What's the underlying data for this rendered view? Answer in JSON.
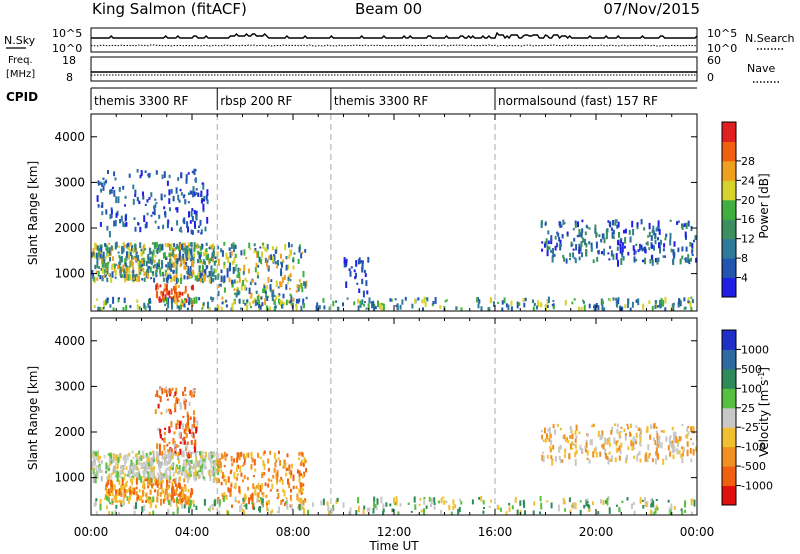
{
  "header": {
    "station": "King Salmon (fitACF)",
    "beam": "Beam 00",
    "date": "07/Nov/2015"
  },
  "noise_panel": {
    "left_label": "N.Sky",
    "right_label": "N.Search",
    "left_ticks": [
      "10^5",
      "10^0"
    ],
    "right_ticks": [
      "10^5",
      "10^0"
    ]
  },
  "freq_panel": {
    "left_label_1": "Freq.",
    "left_label_2": "[MHz]",
    "right_label": "Nave",
    "left_ticks": [
      "18",
      "8"
    ],
    "right_ticks": [
      "60",
      "0"
    ]
  },
  "cpid": {
    "label": "CPID",
    "modes": [
      {
        "name": "themis 3300 RF",
        "start_hour": 0.0
      },
      {
        "name": "rbsp 200 RF",
        "start_hour": 5.0
      },
      {
        "name": "themis 3300 RF",
        "start_hour": 9.5
      },
      {
        "name": "normalsound (fast) 157 RF",
        "start_hour": 16.0
      }
    ]
  },
  "chart_data": [
    {
      "type": "heatmap",
      "title": "",
      "xlabel": "",
      "ylabel": "Slant Range [km]",
      "xlim": [
        0,
        24
      ],
      "ylim": [
        180,
        4500
      ],
      "yticks": [
        1000,
        2000,
        3000,
        4000
      ],
      "grid": false,
      "colorbar": {
        "label": "Power [dB]",
        "range": [
          0,
          32
        ],
        "ticks": [
          "4",
          "8",
          "12",
          "16",
          "20",
          "24",
          "28"
        ],
        "colors": [
          "#1f1fe6",
          "#2255b0",
          "#2f7a9a",
          "#3c8f60",
          "#3fb03f",
          "#d8d22e",
          "#f0a020",
          "#f06010",
          "#e02020"
        ]
      },
      "features": [
        {
          "hours": [
            0.0,
            5.0
          ],
          "range_km": [
            900,
            1700
          ],
          "value": "8-20 dB"
        },
        {
          "hours": [
            0.2,
            4.6
          ],
          "range_km": [
            1900,
            3400
          ],
          "value": "4-8 dB"
        },
        {
          "hours": [
            2.5,
            4.0
          ],
          "range_km": [
            400,
            800
          ],
          "value": "20-28 dB"
        },
        {
          "hours": [
            5.0,
            8.5
          ],
          "range_km": [
            400,
            1700
          ],
          "value": "8-24 dB"
        },
        {
          "hours": [
            10.0,
            11.0
          ],
          "range_km": [
            600,
            1400
          ],
          "value": "4-8 dB"
        },
        {
          "hours": [
            17.8,
            24.0
          ],
          "range_km": [
            1300,
            2200
          ],
          "value": "4-12 dB"
        },
        {
          "hours": [
            0.0,
            24.0
          ],
          "range_km": [
            250,
            500
          ],
          "value": "4-16 dB"
        }
      ]
    },
    {
      "type": "heatmap",
      "title": "",
      "xlabel": "Time UT",
      "ylabel": "Slant Range [km]",
      "xlim": [
        0,
        24
      ],
      "ylim": [
        180,
        4500
      ],
      "xticks": [
        "00:00",
        "04:00",
        "08:00",
        "12:00",
        "16:00",
        "20:00",
        "00:00"
      ],
      "yticks": [
        1000,
        2000,
        3000,
        4000
      ],
      "grid": false,
      "colorbar": {
        "label": "Velocity [m s^-1]",
        "ticks": [
          "1000",
          "500",
          "100",
          "25",
          "-25",
          "-100",
          "-500",
          "-1000"
        ],
        "colors": [
          "#1f2fc8",
          "#2e6aa0",
          "#2e8a5a",
          "#56c040",
          "#c8c8c8",
          "#f0c030",
          "#f09020",
          "#f06010",
          "#e01010"
        ]
      },
      "features": [
        {
          "hours": [
            0.0,
            5.0
          ],
          "range_km": [
            1000,
            1600
          ],
          "value": "-25 to 25 (ground scatter)"
        },
        {
          "hours": [
            0.5,
            4.0
          ],
          "range_km": [
            500,
            1000
          ],
          "value": "-100 to -500"
        },
        {
          "hours": [
            2.5,
            4.2
          ],
          "range_km": [
            1500,
            3000
          ],
          "value": "-500 to -1000"
        },
        {
          "hours": [
            5.0,
            8.5
          ],
          "range_km": [
            400,
            1600
          ],
          "value": "-100 to -500"
        },
        {
          "hours": [
            17.8,
            24.0
          ],
          "range_km": [
            1400,
            2200
          ],
          "value": "-25 to -100"
        },
        {
          "hours": [
            0.0,
            24.0
          ],
          "range_km": [
            250,
            600
          ],
          "value": "-25 to 100"
        }
      ]
    }
  ]
}
